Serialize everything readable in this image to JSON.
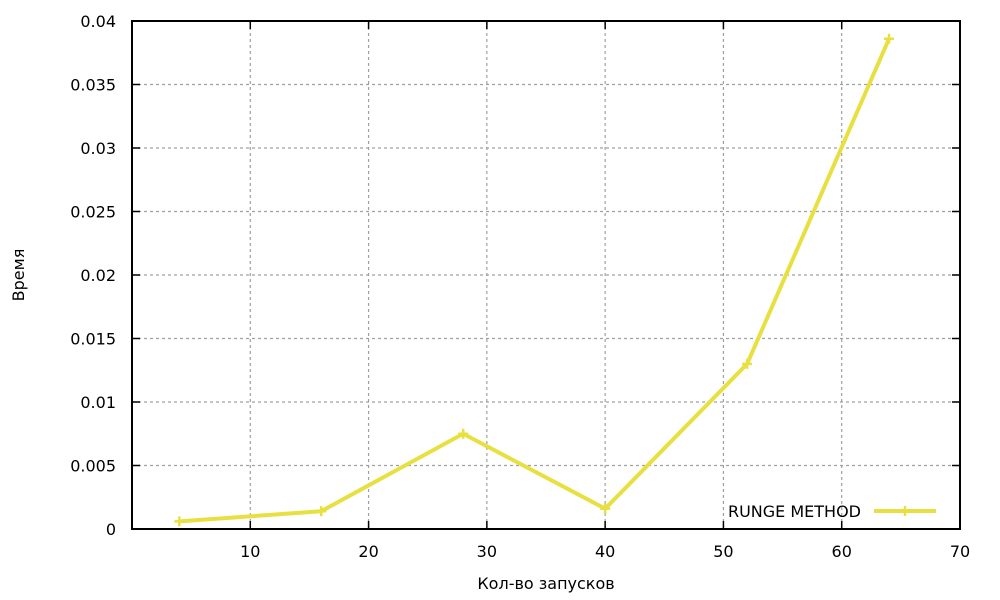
{
  "chart_data": {
    "type": "line",
    "xlabel": "Кол-во запусков",
    "ylabel": "Время",
    "xlim": [
      0,
      70
    ],
    "ylim": [
      0,
      0.04
    ],
    "x_ticks": [
      "10",
      "20",
      "30",
      "40",
      "50",
      "60",
      "70"
    ],
    "y_ticks": [
      "0",
      "0.005",
      "0.01",
      "0.015",
      "0.02",
      "0.025",
      "0.03",
      "0.035",
      "0.04"
    ],
    "grid": true,
    "legend_position": "bottom-right",
    "series": [
      {
        "name": "RUNGE METHOD",
        "color": "#e8e040",
        "x": [
          4,
          16,
          28,
          40,
          52,
          64
        ],
        "y": [
          0.0006,
          0.0014,
          0.0075,
          0.0016,
          0.013,
          0.0386
        ]
      }
    ]
  }
}
